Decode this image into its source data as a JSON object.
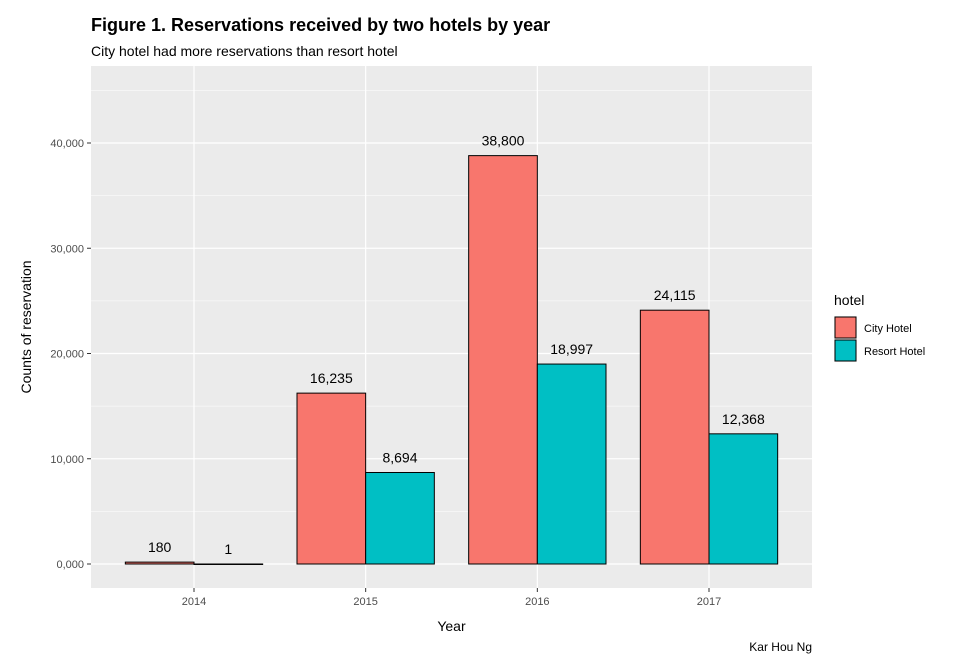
{
  "chart_data": {
    "type": "bar",
    "title": "Figure 1. Reservations received by two hotels by year",
    "subtitle": "City hotel had more reservations than resort hotel",
    "caption": "Kar Hou Ng",
    "xlabel": "Year",
    "ylabel": "Counts of reservation",
    "categories": [
      "2014",
      "2015",
      "2016",
      "2017"
    ],
    "ylim": [
      0,
      46000
    ],
    "yticks": [
      0,
      10000,
      20000,
      30000,
      40000
    ],
    "ytick_labels": [
      "0,000",
      "10,000",
      "20,000",
      "30,000",
      "40,000"
    ],
    "grid": true,
    "legend": {
      "title": "hotel",
      "placement": "right"
    },
    "series": [
      {
        "name": "City Hotel",
        "color": "#F8766D",
        "values": [
          180,
          16235,
          38800,
          24115
        ],
        "labels": [
          "180",
          "16,235",
          "38,800",
          "24,115"
        ]
      },
      {
        "name": "Resort Hotel",
        "color": "#00BFC4",
        "values": [
          1,
          8694,
          18997,
          12368
        ],
        "labels": [
          "1",
          "8,694",
          "18,997",
          "12,368"
        ]
      }
    ]
  }
}
